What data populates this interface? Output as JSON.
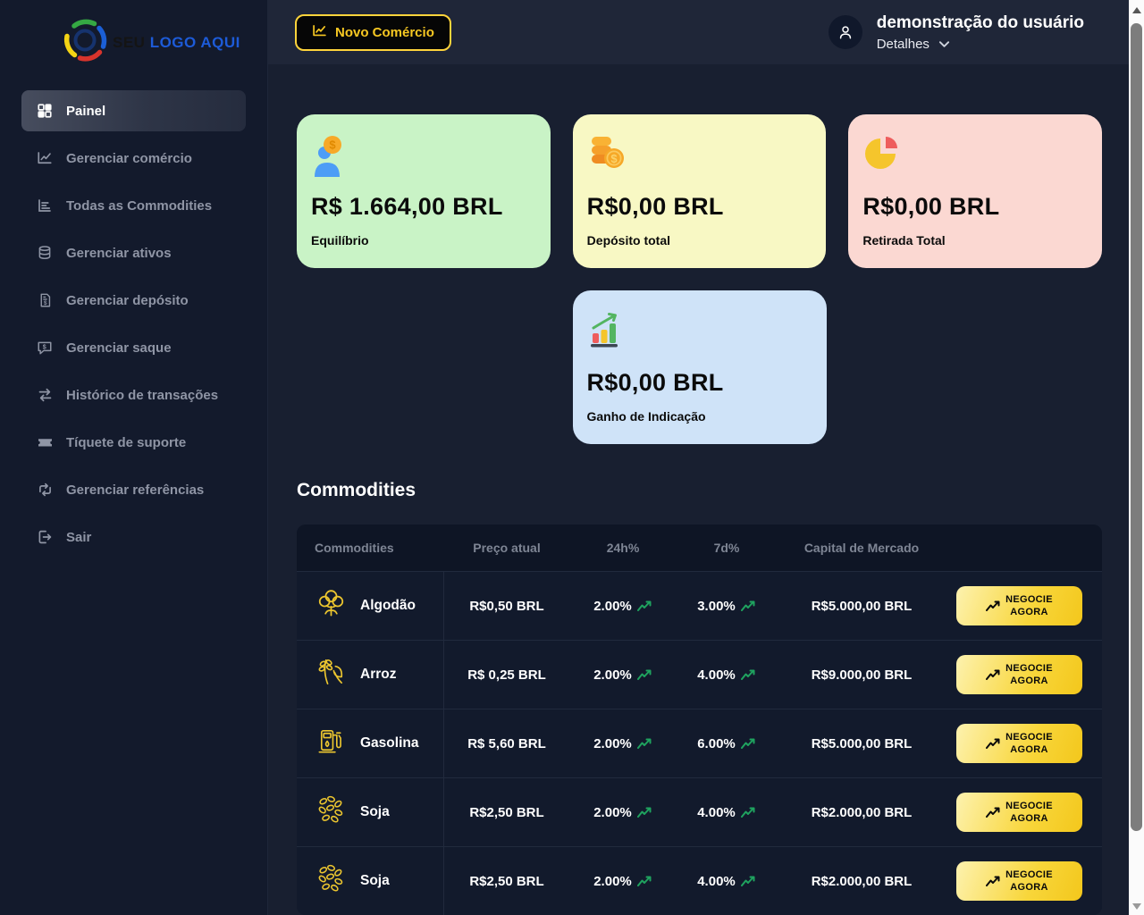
{
  "brand": {
    "name_dark": "SEU",
    "name_blue": "LOGO AQUI"
  },
  "topbar": {
    "new_trade_button": "Novo Comércio",
    "user": {
      "name": "demonstração do usuário",
      "details_label": "Detalhes"
    }
  },
  "sidebar": {
    "items": [
      {
        "label": "Painel",
        "icon": "dashboard-icon",
        "active": true
      },
      {
        "label": "Gerenciar comércio",
        "icon": "chart-line-icon",
        "active": false
      },
      {
        "label": "Todas as Commodities",
        "icon": "chart-bars-icon",
        "active": false
      },
      {
        "label": "Gerenciar ativos",
        "icon": "coins-icon",
        "active": false
      },
      {
        "label": "Gerenciar depósito",
        "icon": "invoice-dollar-icon",
        "active": false
      },
      {
        "label": "Gerenciar saque",
        "icon": "comment-dollar-icon",
        "active": false
      },
      {
        "label": "Histórico de transações",
        "icon": "exchange-icon",
        "active": false
      },
      {
        "label": "Tíquete de suporte",
        "icon": "ticket-icon",
        "active": false
      },
      {
        "label": "Gerenciar referências",
        "icon": "retweet-icon",
        "active": false
      },
      {
        "label": "Sair",
        "icon": "signout-icon",
        "active": false
      }
    ]
  },
  "stats_cards": [
    {
      "value": "R$ 1.664,00 BRL",
      "label": "Equilíbrio",
      "icon": "user-balance-icon",
      "bg": "#c9f3c6"
    },
    {
      "value": "R$0,00 BRL",
      "label": "Depósito total",
      "icon": "coins-stack-icon",
      "bg": "#f8f8c4"
    },
    {
      "value": "R$0,00 BRL",
      "label": "Retirada Total",
      "icon": "pie-chart-icon",
      "bg": "#fbd8d2"
    },
    {
      "value": "R$0,00 BRL",
      "label": "Ganho de Indicação",
      "icon": "growth-chart-icon",
      "bg": "#cfe3f8"
    }
  ],
  "commodities_section": {
    "title": "Commodities",
    "table": {
      "headers": [
        "Commodities",
        "Preço atual",
        "24h%",
        "7d%",
        "Capital de Mercado"
      ],
      "action_label": {
        "line1": "NEGOCIE",
        "line2": "AGORA"
      },
      "rows": [
        {
          "name": "Algodão",
          "icon": "cotton-icon",
          "price": "R$0,50 BRL",
          "change_24h": "2.00%",
          "change_7d": "3.00%",
          "market_cap": "R$5.000,00 BRL"
        },
        {
          "name": "Arroz",
          "icon": "rice-icon",
          "price": "R$ 0,25 BRL",
          "change_24h": "2.00%",
          "change_7d": "4.00%",
          "market_cap": "R$9.000,00 BRL"
        },
        {
          "name": "Gasolina",
          "icon": "fuel-icon",
          "price": "R$ 5,60 BRL",
          "change_24h": "2.00%",
          "change_7d": "6.00%",
          "market_cap": "R$5.000,00 BRL"
        },
        {
          "name": "Soja",
          "icon": "soy-icon",
          "price": "R$2,50 BRL",
          "change_24h": "2.00%",
          "change_7d": "4.00%",
          "market_cap": "R$2.000,00 BRL"
        },
        {
          "name": "Soja",
          "icon": "soy-icon",
          "price": "R$2,50 BRL",
          "change_24h": "2.00%",
          "change_7d": "4.00%",
          "market_cap": "R$2.000,00 BRL"
        }
      ]
    }
  },
  "colors": {
    "accent_yellow": "#f5c518",
    "positive_green": "#1fa35f"
  }
}
